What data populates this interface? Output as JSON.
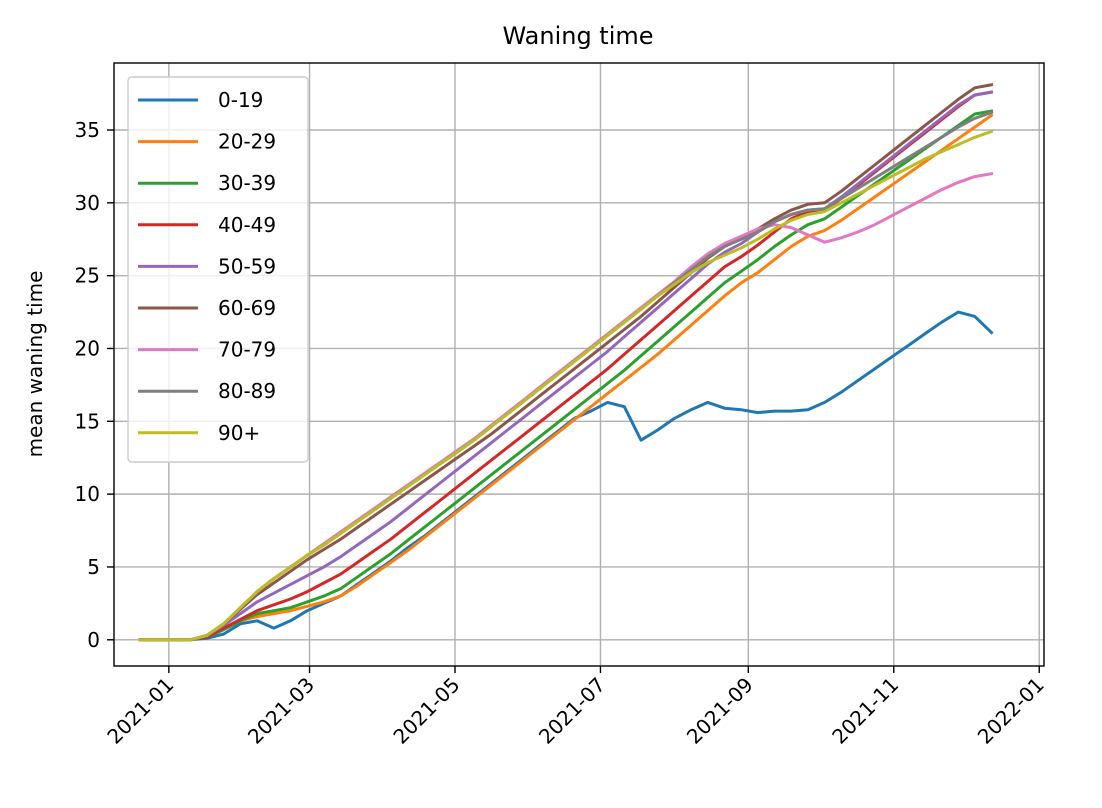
{
  "chart_data": {
    "type": "line",
    "title": "Waning time",
    "xlabel": "",
    "ylabel": "mean waning time",
    "x_ticks": [
      "2021-01",
      "2021-03",
      "2021-05",
      "2021-07",
      "2021-09",
      "2021-11",
      "2022-01"
    ],
    "y_ticks": [
      0,
      5,
      10,
      15,
      20,
      25,
      30,
      35
    ],
    "xlim": [
      "2020-12-09",
      "2022-01-03"
    ],
    "ylim": [
      -1.8,
      39.6
    ],
    "grid": true,
    "legend_position": "upper-left",
    "x": [
      "2020-12-20",
      "2020-12-27",
      "2021-01-03",
      "2021-01-10",
      "2021-01-17",
      "2021-01-24",
      "2021-01-31",
      "2021-02-07",
      "2021-02-14",
      "2021-02-21",
      "2021-02-28",
      "2021-03-07",
      "2021-03-14",
      "2021-03-21",
      "2021-03-28",
      "2021-04-04",
      "2021-04-11",
      "2021-04-18",
      "2021-04-25",
      "2021-05-02",
      "2021-05-09",
      "2021-05-16",
      "2021-05-23",
      "2021-05-30",
      "2021-06-06",
      "2021-06-13",
      "2021-06-20",
      "2021-06-27",
      "2021-07-04",
      "2021-07-11",
      "2021-07-18",
      "2021-07-25",
      "2021-08-01",
      "2021-08-08",
      "2021-08-15",
      "2021-08-22",
      "2021-08-29",
      "2021-09-05",
      "2021-09-12",
      "2021-09-19",
      "2021-09-26",
      "2021-10-03",
      "2021-10-10",
      "2021-10-17",
      "2021-10-24",
      "2021-10-31",
      "2021-11-07",
      "2021-11-14",
      "2021-11-21",
      "2021-11-28",
      "2021-12-05",
      "2021-12-12",
      "2021-12-19"
    ],
    "series": [
      {
        "name": "0-19",
        "color": "#1f77b4",
        "values": [
          0,
          0,
          0,
          0,
          0.1,
          0.4,
          1.1,
          1.3,
          0.8,
          1.3,
          2.0,
          2.5,
          3.0,
          3.8,
          4.6,
          5.4,
          6.3,
          7.1,
          8.0,
          8.9,
          9.8,
          10.7,
          11.6,
          12.5,
          13.4,
          14.3,
          15.2,
          15.7,
          16.3,
          16.0,
          13.7,
          14.4,
          15.2,
          15.8,
          16.3,
          15.9,
          15.8,
          15.6,
          15.7,
          15.7,
          15.8,
          16.3,
          17.0,
          17.8,
          18.6,
          19.4,
          20.2,
          21.0,
          21.8,
          22.5,
          22.2,
          21.1,
          null
        ]
      },
      {
        "name": "20-29",
        "color": "#ff7f0e",
        "values": [
          0,
          0,
          0,
          0,
          0.2,
          0.7,
          1.3,
          1.6,
          1.8,
          2.0,
          2.3,
          2.6,
          3.0,
          3.7,
          4.5,
          5.3,
          6.1,
          7.0,
          7.9,
          8.8,
          9.7,
          10.6,
          11.5,
          12.4,
          13.3,
          14.2,
          15.1,
          16.0,
          16.9,
          17.8,
          18.7,
          19.6,
          20.6,
          21.6,
          22.6,
          23.6,
          24.5,
          25.2,
          26.1,
          27.0,
          27.7,
          28.1,
          28.8,
          29.6,
          30.4,
          31.2,
          32.0,
          32.8,
          33.6,
          34.4,
          35.2,
          36.0,
          null
        ]
      },
      {
        "name": "30-39",
        "color": "#2ca02c",
        "values": [
          0,
          0,
          0,
          0,
          0.2,
          0.7,
          1.3,
          1.8,
          2.0,
          2.2,
          2.6,
          3.0,
          3.5,
          4.3,
          5.1,
          5.9,
          6.8,
          7.7,
          8.6,
          9.5,
          10.4,
          11.3,
          12.2,
          13.1,
          14.0,
          14.9,
          15.8,
          16.7,
          17.6,
          18.5,
          19.5,
          20.5,
          21.5,
          22.5,
          23.5,
          24.5,
          25.3,
          26.1,
          27.0,
          27.8,
          28.5,
          28.9,
          29.7,
          30.5,
          31.3,
          32.1,
          32.9,
          33.7,
          34.5,
          35.3,
          36.1,
          36.3,
          null
        ]
      },
      {
        "name": "40-49",
        "color": "#d62728",
        "values": [
          0,
          0,
          0,
          0,
          0.2,
          0.8,
          1.4,
          2.0,
          2.4,
          2.8,
          3.3,
          3.9,
          4.5,
          5.3,
          6.1,
          6.9,
          7.8,
          8.7,
          9.6,
          10.5,
          11.4,
          12.3,
          13.2,
          14.1,
          15.0,
          15.9,
          16.8,
          17.7,
          18.6,
          19.6,
          20.6,
          21.6,
          22.6,
          23.6,
          24.6,
          25.6,
          26.3,
          27.1,
          28.0,
          28.9,
          29.4,
          29.5,
          30.3,
          31.2,
          32.1,
          33.0,
          33.9,
          34.8,
          35.7,
          36.6,
          37.4,
          37.6,
          null
        ]
      },
      {
        "name": "50-59",
        "color": "#9467bd",
        "values": [
          0,
          0,
          0,
          0,
          0.3,
          1.0,
          1.8,
          2.6,
          3.2,
          3.8,
          4.4,
          5.0,
          5.7,
          6.5,
          7.3,
          8.1,
          9.0,
          9.9,
          10.8,
          11.7,
          12.6,
          13.5,
          14.4,
          15.3,
          16.2,
          17.1,
          18.0,
          18.9,
          19.8,
          20.8,
          21.8,
          22.8,
          23.8,
          24.8,
          25.8,
          26.6,
          27.2,
          28.0,
          28.7,
          29.2,
          29.5,
          29.6,
          30.4,
          31.3,
          32.2,
          33.1,
          34.0,
          34.9,
          35.8,
          36.7,
          37.4,
          37.6,
          null
        ]
      },
      {
        "name": "60-69",
        "color": "#8c564b",
        "values": [
          0,
          0,
          0,
          0,
          0.3,
          1.1,
          2.1,
          3.1,
          3.9,
          4.7,
          5.5,
          6.2,
          6.9,
          7.7,
          8.5,
          9.3,
          10.1,
          10.9,
          11.7,
          12.5,
          13.3,
          14.1,
          15.0,
          15.9,
          16.8,
          17.7,
          18.6,
          19.5,
          20.4,
          21.3,
          22.2,
          23.2,
          24.2,
          25.2,
          26.2,
          27.0,
          27.6,
          28.2,
          28.9,
          29.5,
          29.9,
          30.0,
          30.8,
          31.7,
          32.6,
          33.5,
          34.4,
          35.3,
          36.2,
          37.1,
          37.9,
          38.1,
          null
        ]
      },
      {
        "name": "70-79",
        "color": "#e377c2",
        "values": [
          0,
          0,
          0,
          0,
          0.3,
          1.1,
          2.2,
          3.3,
          4.2,
          5.0,
          5.8,
          6.6,
          7.4,
          8.2,
          9.0,
          9.8,
          10.6,
          11.4,
          12.2,
          13.0,
          13.8,
          14.7,
          15.6,
          16.5,
          17.4,
          18.3,
          19.2,
          20.1,
          21.0,
          21.9,
          22.8,
          23.7,
          24.6,
          25.6,
          26.5,
          27.2,
          27.7,
          28.2,
          28.5,
          28.3,
          27.8,
          27.3,
          27.6,
          28.0,
          28.5,
          29.1,
          29.7,
          30.3,
          30.9,
          31.4,
          31.8,
          32.0,
          null
        ]
      },
      {
        "name": "80-89",
        "color": "#7f7f7f",
        "values": [
          0,
          0,
          0,
          0,
          0.3,
          1.1,
          2.2,
          3.3,
          4.2,
          5.0,
          5.8,
          6.5,
          7.3,
          8.1,
          8.9,
          9.7,
          10.5,
          11.3,
          12.1,
          12.9,
          13.7,
          14.6,
          15.5,
          16.4,
          17.3,
          18.2,
          19.1,
          20.0,
          20.9,
          21.8,
          22.7,
          23.6,
          24.5,
          25.4,
          26.3,
          27.0,
          27.5,
          28.0,
          28.7,
          29.2,
          29.5,
          29.6,
          30.3,
          31.0,
          31.7,
          32.4,
          33.1,
          33.8,
          34.5,
          35.2,
          35.8,
          36.2,
          null
        ]
      },
      {
        "name": "90+",
        "color": "#bcbd22",
        "values": [
          0,
          0,
          0,
          0,
          0.3,
          1.1,
          2.2,
          3.3,
          4.2,
          5.0,
          5.8,
          6.5,
          7.3,
          8.1,
          8.9,
          9.7,
          10.5,
          11.3,
          12.1,
          12.9,
          13.7,
          14.6,
          15.5,
          16.4,
          17.3,
          18.2,
          19.1,
          20.0,
          20.9,
          21.8,
          22.7,
          23.6,
          24.4,
          25.2,
          25.9,
          26.4,
          26.9,
          27.5,
          28.2,
          28.8,
          29.2,
          29.4,
          30.0,
          30.6,
          31.2,
          31.8,
          32.4,
          33.0,
          33.5,
          34.0,
          34.5,
          34.9,
          null
        ]
      }
    ]
  }
}
